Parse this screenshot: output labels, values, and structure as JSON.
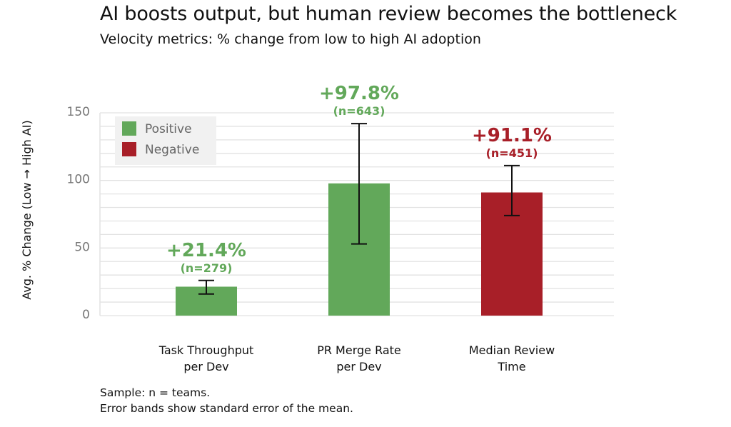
{
  "chart_data": {
    "type": "bar",
    "title": "AI boosts output, but human review becomes the bottleneck",
    "subtitle": "Velocity metrics: % change from low to high AI adoption",
    "ylabel": "Avg. % Change (Low → High AI)",
    "xlabel": "",
    "ylim": [
      0,
      150
    ],
    "yticks": [
      0,
      50,
      100,
      150
    ],
    "grid": true,
    "legend_position": "top-left",
    "legend": [
      {
        "label": "Positive",
        "color": "#62a85a"
      },
      {
        "label": "Negative",
        "color": "#a81f28"
      }
    ],
    "categories": [
      [
        "Task Throughput",
        "per Dev"
      ],
      [
        "PR Merge Rate",
        "per Dev"
      ],
      [
        "Median Review",
        "Time"
      ]
    ],
    "values": [
      21.4,
      97.8,
      91.1
    ],
    "error": [
      [
        16,
        26
      ],
      [
        53,
        142
      ],
      [
        74,
        111
      ]
    ],
    "sentiment": [
      "Positive",
      "Positive",
      "Negative"
    ],
    "value_labels": [
      "+21.4%",
      "+97.8%",
      "+91.1%"
    ],
    "n_labels": [
      "(n=279)",
      "(n=643)",
      "(n=451)"
    ]
  },
  "colors": {
    "positive": "#62a85a",
    "negative": "#a81f28",
    "grid": "#e2e2e2"
  },
  "footnote": {
    "line1": "Sample: n = teams.",
    "line2": "Error bands show standard error of the mean."
  }
}
